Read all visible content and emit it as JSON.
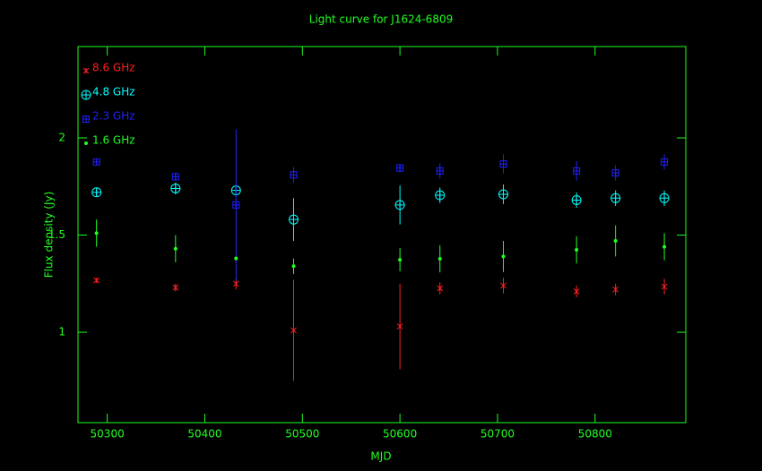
{
  "chart_data": {
    "type": "scatter",
    "title": "Light curve for J1624-6809",
    "xlabel": "MJD",
    "ylabel": "Flux density (Jy)",
    "x": [
      50289,
      50370,
      50432,
      50491,
      50600,
      50641,
      50706,
      50781,
      50821,
      50871
    ],
    "series": [
      {
        "name": "8.6 GHz",
        "color": "#ff2020",
        "marker": "x",
        "values": [
          1.267,
          1.23,
          1.25,
          1.01,
          1.03,
          1.226,
          1.24,
          1.21,
          1.22,
          1.235
        ],
        "errors": [
          0.01,
          0.02,
          0.03,
          0.26,
          0.22,
          0.03,
          0.04,
          0.03,
          0.03,
          0.04
        ]
      },
      {
        "name": "4.8 GHz",
        "color": "#00ffff",
        "marker": "circle",
        "values": [
          1.72,
          1.74,
          1.73,
          1.58,
          1.655,
          1.705,
          1.71,
          1.68,
          1.69,
          1.69
        ],
        "errors": [
          0.02,
          0.03,
          0.03,
          0.11,
          0.1,
          0.04,
          0.05,
          0.04,
          0.04,
          0.04
        ]
      },
      {
        "name": "2.3 GHz",
        "color": "#2020ff",
        "marker": "square",
        "values": [
          1.876,
          1.8,
          1.655,
          1.81,
          1.845,
          1.83,
          1.866,
          1.83,
          1.82,
          1.876
        ],
        "errors": [
          0.01,
          0.02,
          0.39,
          0.04,
          0.02,
          0.04,
          0.05,
          0.05,
          0.04,
          0.04
        ]
      },
      {
        "name": "1.6 GHz",
        "color": "#20ff20",
        "marker": "dot",
        "values": [
          1.51,
          1.43,
          1.38,
          1.34,
          1.373,
          1.378,
          1.39,
          1.424,
          1.47,
          1.44
        ],
        "errors": [
          0.07,
          0.07,
          0.01,
          0.04,
          0.06,
          0.07,
          0.08,
          0.07,
          0.08,
          0.07
        ]
      }
    ],
    "xlim": [
      50270,
      50893
    ],
    "xticks": [
      50300,
      50400,
      50500,
      50600,
      50700,
      50800
    ],
    "ylim": [
      0.535,
      2.47
    ],
    "yticks": [
      1,
      1.5,
      2
    ],
    "legend": "top-left"
  }
}
